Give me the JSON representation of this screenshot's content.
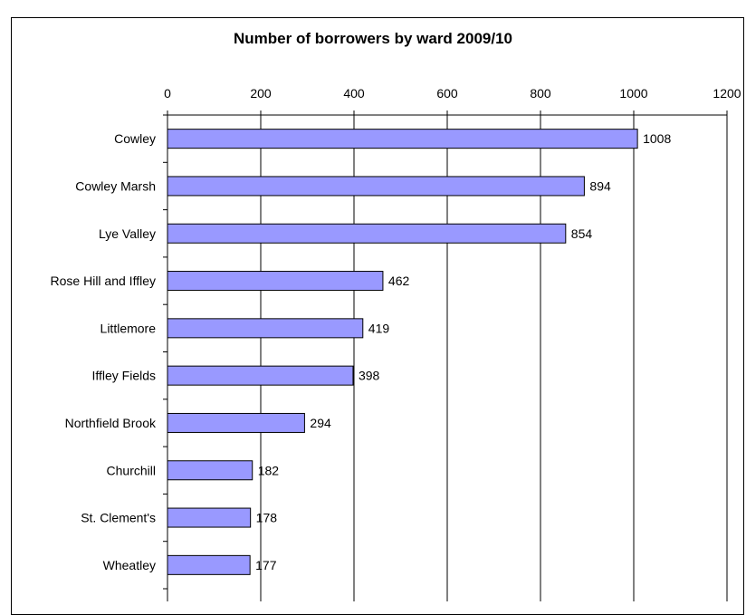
{
  "chart_data": {
    "type": "bar",
    "orientation": "horizontal",
    "title": "Number of borrowers by ward 2009/10",
    "xlabel": "",
    "ylabel": "",
    "categories": [
      "Cowley",
      "Cowley Marsh",
      "Lye Valley",
      "Rose Hill and Iffley",
      "Littlemore",
      "Iffley Fields",
      "Northfield Brook",
      "Churchill",
      "St. Clement's",
      "Wheatley"
    ],
    "values": [
      1008,
      894,
      854,
      462,
      419,
      398,
      294,
      182,
      178,
      177
    ],
    "xlim": [
      0,
      1200
    ],
    "x_ticks": [
      0,
      200,
      400,
      600,
      800,
      1000,
      1200
    ],
    "x_axis_position": "top",
    "grid": true,
    "legend": "none",
    "data_labels": true,
    "bar_color": "#9999FF",
    "bar_edge_color": "#000000"
  }
}
